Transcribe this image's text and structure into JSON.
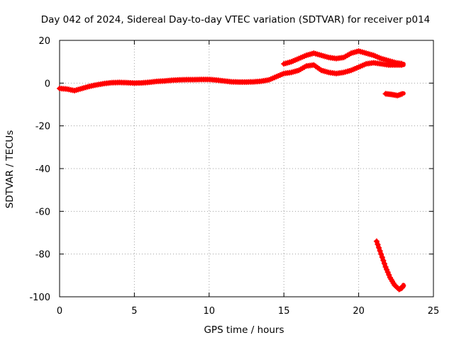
{
  "chart_data": {
    "type": "line",
    "title": "Day 042 of 2024, Sidereal Day-to-day VTEC variation (SDTVAR) for receiver p014",
    "xlabel": "GPS time / hours",
    "ylabel": "SDTVAR / TECUs",
    "xlim": [
      0,
      25
    ],
    "ylim": [
      -100,
      20
    ],
    "xticks": [
      0,
      5,
      10,
      15,
      20,
      25
    ],
    "yticks": [
      -100,
      -80,
      -60,
      -40,
      -20,
      0,
      20
    ],
    "xtick_labels": [
      "0",
      "5",
      "10",
      "15",
      "20",
      "25"
    ],
    "ytick_labels": [
      "-100",
      "-80",
      "-60",
      "-40",
      "-20",
      "0",
      "20"
    ],
    "grid": true,
    "color": "#ff0000",
    "series": [
      {
        "name": "main",
        "points": [
          [
            0,
            -2.5
          ],
          [
            0.5,
            -2.8
          ],
          [
            1,
            -3.5
          ],
          [
            1.5,
            -2.5
          ],
          [
            2,
            -1.5
          ],
          [
            2.5,
            -0.8
          ],
          [
            3,
            -0.2
          ],
          [
            3.5,
            0.2
          ],
          [
            4,
            0.3
          ],
          [
            4.5,
            0.2
          ],
          [
            5,
            0
          ],
          [
            5.5,
            0.1
          ],
          [
            6,
            0.4
          ],
          [
            6.5,
            0.8
          ],
          [
            7,
            1.0
          ],
          [
            7.5,
            1.3
          ],
          [
            8,
            1.5
          ],
          [
            8.5,
            1.6
          ],
          [
            9,
            1.6
          ],
          [
            9.5,
            1.7
          ],
          [
            10,
            1.7
          ],
          [
            10.5,
            1.4
          ],
          [
            11,
            1.0
          ],
          [
            11.5,
            0.6
          ],
          [
            12,
            0.5
          ],
          [
            12.5,
            0.5
          ],
          [
            13,
            0.6
          ],
          [
            13.5,
            0.9
          ],
          [
            14,
            1.5
          ],
          [
            14.5,
            3.0
          ],
          [
            15,
            4.5
          ],
          [
            15.5,
            5.0
          ],
          [
            16,
            6.0
          ],
          [
            16.5,
            8.0
          ],
          [
            17,
            8.5
          ],
          [
            17.5,
            6.0
          ],
          [
            18,
            5.0
          ],
          [
            18.5,
            4.5
          ],
          [
            19,
            5.0
          ],
          [
            19.5,
            6.0
          ],
          [
            20,
            7.5
          ],
          [
            20.5,
            9.0
          ],
          [
            21,
            9.5
          ],
          [
            21.5,
            9.0
          ],
          [
            22,
            8.5
          ],
          [
            22.5,
            8.5
          ],
          [
            23,
            8.5
          ]
        ]
      },
      {
        "name": "upper-branch",
        "points": [
          [
            15,
            9.0
          ],
          [
            15.5,
            10.0
          ],
          [
            16,
            11.5
          ],
          [
            16.5,
            13.0
          ],
          [
            17,
            14.0
          ],
          [
            17.5,
            13.0
          ],
          [
            18,
            12.0
          ],
          [
            18.5,
            11.5
          ],
          [
            19,
            12.0
          ],
          [
            19.5,
            14.0
          ],
          [
            20,
            15.0
          ],
          [
            20.5,
            14.0
          ],
          [
            21,
            13.0
          ],
          [
            21.5,
            11.5
          ],
          [
            22,
            10.5
          ],
          [
            22.5,
            9.5
          ],
          [
            23,
            9.0
          ]
        ]
      },
      {
        "name": "negative-short",
        "points": [
          [
            21.8,
            -5.0
          ],
          [
            22.2,
            -5.3
          ],
          [
            22.6,
            -5.8
          ],
          [
            23,
            -4.8
          ]
        ]
      },
      {
        "name": "drop",
        "points": [
          [
            21.2,
            -74
          ],
          [
            21.5,
            -80
          ],
          [
            21.8,
            -86
          ],
          [
            22.1,
            -91
          ],
          [
            22.4,
            -94.5
          ],
          [
            22.7,
            -96.5
          ],
          [
            22.9,
            -95.8
          ],
          [
            23.0,
            -94.5
          ]
        ]
      }
    ]
  }
}
